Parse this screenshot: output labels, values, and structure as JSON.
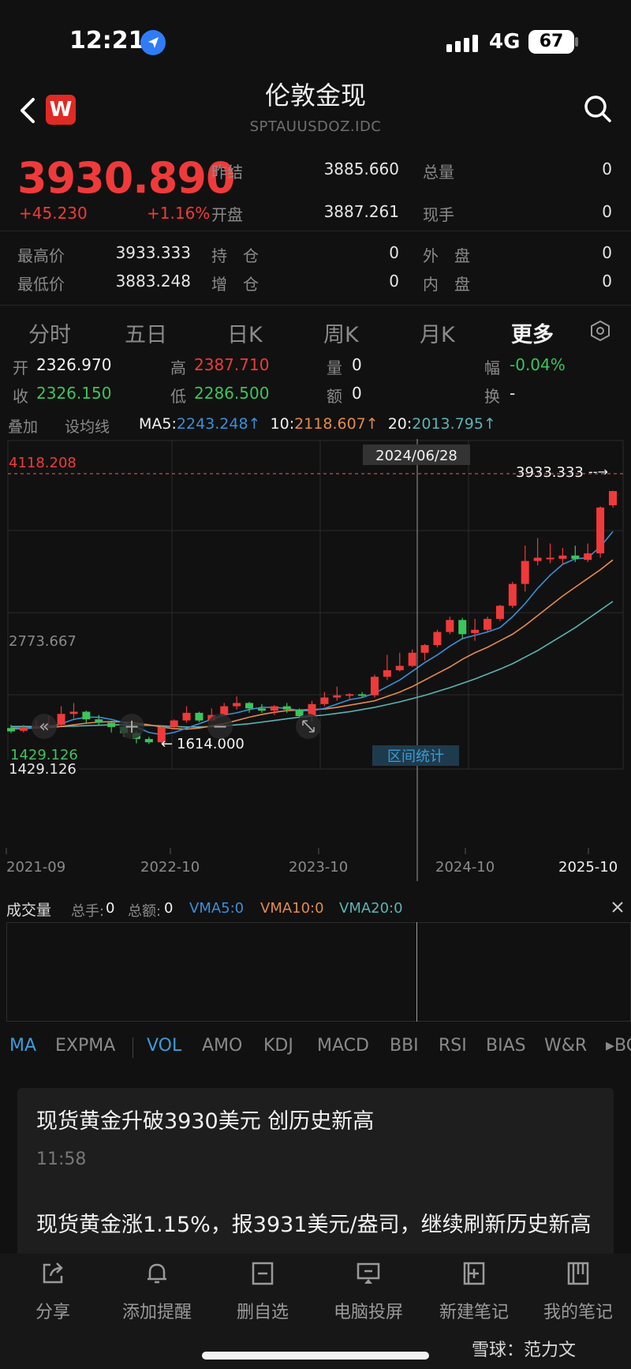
{
  "status_bar": {
    "time": "12:21",
    "network": "4G",
    "battery": "67"
  },
  "header": {
    "title": "伦敦金现",
    "subtitle": "SPTAUUSDOZ.IDC",
    "logo": "W"
  },
  "quote": {
    "price": "3930.890",
    "change": "+45.230",
    "change_pct": "+1.16%",
    "rows": [
      {
        "label": "昨结",
        "value": "3885.660",
        "label2": "总量",
        "value2": "0"
      },
      {
        "label": "开盘",
        "value": "3887.261",
        "label2": "现手",
        "value2": "0"
      }
    ],
    "stats": [
      {
        "l1": "最高价",
        "v1": "3933.333",
        "l2": "持　仓",
        "v2": "0",
        "l3": "外　盘",
        "v3": "0"
      },
      {
        "l1": "最低价",
        "v1": "3883.248",
        "l2": "增　仓",
        "v2": "0",
        "l3": "内　盘",
        "v3": "0"
      }
    ]
  },
  "tabs": [
    "分时",
    "五日",
    "日K",
    "周K",
    "月K",
    "更多"
  ],
  "ohlc": {
    "open_label": "开",
    "open": "2326.970",
    "high_label": "高",
    "high": "2387.710",
    "vol_label": "量",
    "vol": "0",
    "amp_label": "幅",
    "amp": "-0.04%",
    "close_label": "收",
    "close": "2326.150",
    "low_label": "低",
    "low": "2286.500",
    "amt_label": "额",
    "amt": "0",
    "turn_label": "换",
    "turn": "-"
  },
  "ma_row": {
    "overlay": "叠加",
    "set_ma": "设均线",
    "ma5_label": "MA5:",
    "ma5": "2243.248↑",
    "ma10_label": "10:",
    "ma10": "2118.607↑",
    "ma20_label": "20:",
    "ma20": "2013.795↑"
  },
  "chart": {
    "top_label": "4118.208",
    "mid_label": "2773.667",
    "bottom_label": "1429.126",
    "bottom_label_2": "1429.126",
    "crosshair_date": "2024/06/28",
    "max_label": "3933.333",
    "min_label": "1614.000",
    "range_stats": "区间统计",
    "x_labels": [
      "2021-09",
      "2022-10",
      "2023-10",
      "2024-10",
      "2025-10"
    ]
  },
  "chart_data": {
    "type": "candlestick",
    "x_labels": [
      "2021-09",
      "2022-10",
      "2023-10",
      "2024-10",
      "2025-10"
    ],
    "ylim": [
      1429.126,
      4118.208
    ],
    "y_ticks": [
      4118.208,
      2773.667,
      1429.126
    ],
    "max_marker": 3933.333,
    "min_marker": 1614.0,
    "crosshair": "2024/06/28",
    "candles": [
      {
        "o": 1760,
        "c": 1730,
        "h": 1790,
        "l": 1715
      },
      {
        "o": 1735,
        "c": 1765,
        "h": 1790,
        "l": 1720
      },
      {
        "o": 1760,
        "c": 1780,
        "h": 1830,
        "l": 1750
      },
      {
        "o": 1780,
        "c": 1790,
        "h": 1870,
        "l": 1760
      },
      {
        "o": 1790,
        "c": 1890,
        "h": 1960,
        "l": 1780
      },
      {
        "o": 1890,
        "c": 1910,
        "h": 1990,
        "l": 1850
      },
      {
        "o": 1910,
        "c": 1840,
        "h": 1920,
        "l": 1810
      },
      {
        "o": 1840,
        "c": 1810,
        "h": 1880,
        "l": 1790
      },
      {
        "o": 1810,
        "c": 1770,
        "h": 1815,
        "l": 1720
      },
      {
        "o": 1770,
        "c": 1715,
        "h": 1790,
        "l": 1680
      },
      {
        "o": 1715,
        "c": 1660,
        "h": 1730,
        "l": 1620
      },
      {
        "o": 1660,
        "c": 1630,
        "h": 1680,
        "l": 1614
      },
      {
        "o": 1630,
        "c": 1770,
        "h": 1780,
        "l": 1620
      },
      {
        "o": 1770,
        "c": 1830,
        "h": 1840,
        "l": 1760
      },
      {
        "o": 1830,
        "c": 1900,
        "h": 1960,
        "l": 1810
      },
      {
        "o": 1900,
        "c": 1830,
        "h": 1910,
        "l": 1815
      },
      {
        "o": 1830,
        "c": 1880,
        "h": 1940,
        "l": 1820
      },
      {
        "o": 1880,
        "c": 1960,
        "h": 1990,
        "l": 1870
      },
      {
        "o": 1960,
        "c": 1990,
        "h": 2050,
        "l": 1930
      },
      {
        "o": 1990,
        "c": 1940,
        "h": 2000,
        "l": 1900
      },
      {
        "o": 1940,
        "c": 1920,
        "h": 1980,
        "l": 1900
      },
      {
        "o": 1920,
        "c": 1960,
        "h": 1970,
        "l": 1880
      },
      {
        "o": 1960,
        "c": 1930,
        "h": 1990,
        "l": 1900
      },
      {
        "o": 1930,
        "c": 1870,
        "h": 1940,
        "l": 1860
      },
      {
        "o": 1870,
        "c": 1980,
        "h": 2010,
        "l": 1810
      },
      {
        "o": 1980,
        "c": 2040,
        "h": 2090,
        "l": 1960
      },
      {
        "o": 2040,
        "c": 2060,
        "h": 2140,
        "l": 2010
      },
      {
        "o": 2060,
        "c": 2070,
        "h": 2080,
        "l": 2020
      },
      {
        "o": 2070,
        "c": 2060,
        "h": 2090,
        "l": 2040
      },
      {
        "o": 2060,
        "c": 2230,
        "h": 2250,
        "l": 2040
      },
      {
        "o": 2230,
        "c": 2290,
        "h": 2430,
        "l": 2200
      },
      {
        "o": 2290,
        "c": 2330,
        "h": 2450,
        "l": 2280
      },
      {
        "o": 2330,
        "c": 2450,
        "h": 2480,
        "l": 2320
      },
      {
        "o": 2450,
        "c": 2520,
        "h": 2530,
        "l": 2380
      },
      {
        "o": 2520,
        "c": 2640,
        "h": 2660,
        "l": 2500
      },
      {
        "o": 2640,
        "c": 2750,
        "h": 2780,
        "l": 2620
      },
      {
        "o": 2750,
        "c": 2620,
        "h": 2770,
        "l": 2580
      },
      {
        "o": 2630,
        "c": 2660,
        "h": 2760,
        "l": 2560
      },
      {
        "o": 2660,
        "c": 2760,
        "h": 2780,
        "l": 2640
      },
      {
        "o": 2760,
        "c": 2880,
        "h": 2890,
        "l": 2740
      },
      {
        "o": 2880,
        "c": 3080,
        "h": 3100,
        "l": 2860
      },
      {
        "o": 3080,
        "c": 3290,
        "h": 3430,
        "l": 3010
      },
      {
        "o": 3290,
        "c": 3320,
        "h": 3500,
        "l": 3250
      },
      {
        "o": 3320,
        "c": 3320,
        "h": 3450,
        "l": 3270
      },
      {
        "o": 3310,
        "c": 3340,
        "h": 3410,
        "l": 3260
      },
      {
        "o": 3340,
        "c": 3310,
        "h": 3430,
        "l": 3280
      },
      {
        "o": 3300,
        "c": 3360,
        "h": 3450,
        "l": 3280
      },
      {
        "o": 3360,
        "c": 3780,
        "h": 3790,
        "l": 3320
      },
      {
        "o": 3800,
        "c": 3930,
        "h": 3933,
        "l": 3780
      }
    ],
    "ma5": [
      1750,
      1755,
      1762,
      1770,
      1800,
      1840,
      1860,
      1860,
      1840,
      1810,
      1770,
      1720,
      1700,
      1720,
      1760,
      1800,
      1840,
      1880,
      1900,
      1930,
      1950,
      1950,
      1940,
      1920,
      1920,
      1940,
      1980,
      2020,
      2040,
      2080,
      2140,
      2200,
      2280,
      2360,
      2430,
      2510,
      2580,
      2610,
      2640,
      2680,
      2780,
      2900,
      3040,
      3160,
      3260,
      3310,
      3320,
      3420,
      3560
    ],
    "ma10": [
      1760,
      1760,
      1762,
      1765,
      1775,
      1790,
      1805,
      1815,
      1820,
      1815,
      1805,
      1790,
      1770,
      1755,
      1750,
      1760,
      1780,
      1800,
      1830,
      1860,
      1885,
      1905,
      1920,
      1925,
      1930,
      1935,
      1950,
      1970,
      1990,
      2010,
      2050,
      2090,
      2140,
      2200,
      2260,
      2320,
      2390,
      2450,
      2500,
      2560,
      2620,
      2700,
      2790,
      2880,
      2970,
      3050,
      3130,
      3210,
      3300
    ],
    "ma20": [
      1775,
      1775,
      1774,
      1774,
      1775,
      1778,
      1782,
      1786,
      1790,
      1790,
      1788,
      1785,
      1780,
      1775,
      1770,
      1770,
      1775,
      1780,
      1790,
      1800,
      1815,
      1830,
      1845,
      1860,
      1870,
      1880,
      1895,
      1910,
      1930,
      1950,
      1975,
      2000,
      2030,
      2060,
      2095,
      2130,
      2170,
      2210,
      2255,
      2300,
      2350,
      2410,
      2470,
      2540,
      2610,
      2680,
      2760,
      2840,
      2920
    ]
  },
  "volume": {
    "title": "成交量",
    "total_hands_label": "总手:",
    "total_hands": "0",
    "total_amt_label": "总额:",
    "total_amt": "0",
    "vma5": "VMA5:0",
    "vma10": "VMA10:0",
    "vma20": "VMA20:0"
  },
  "indicators": {
    "main": [
      "MA",
      "EXPMA"
    ],
    "sub": [
      "VOL",
      "AMO",
      "KDJ",
      "MACD",
      "BBI",
      "RSI",
      "BIAS",
      "W&R",
      "BC"
    ]
  },
  "news": {
    "headline": "现货黄金升破3930美元 创历史新高",
    "time": "11:58",
    "body": "现货黄金涨1.15%，报3931美元/盎司，继续刷新历史新高"
  },
  "bottom_bar": [
    "分享",
    "添加提醒",
    "删自选",
    "电脑投屏",
    "新建笔记",
    "我的笔记"
  ],
  "watermark": "雪球：范力文",
  "colors": {
    "up": "#f03a3a",
    "down": "#3bc45c",
    "accent": "#3c9cd6",
    "ma5": "#3b8fd8",
    "ma10": "#e48a4e",
    "ma20": "#5bb4b4"
  }
}
